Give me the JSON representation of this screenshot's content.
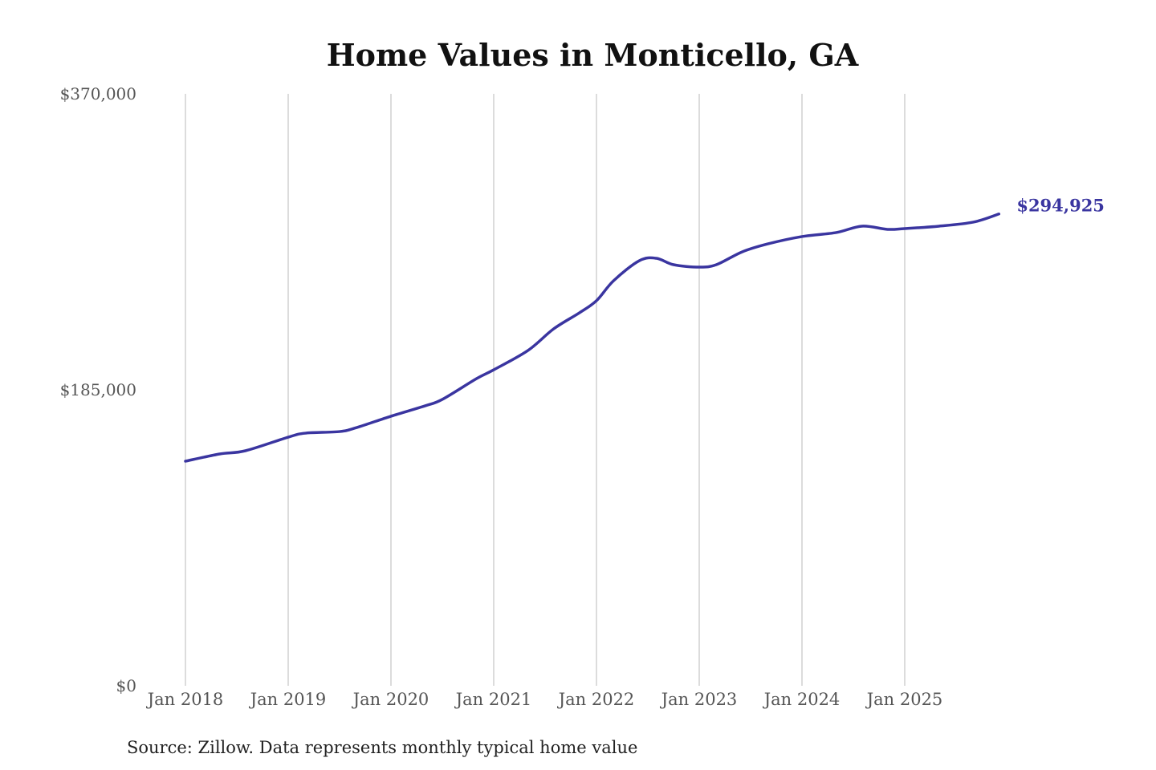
{
  "chart_data": {
    "type": "line",
    "title": "Home Values in Monticello, GA",
    "xlabel": "",
    "ylabel": "",
    "ylim": [
      0,
      370000
    ],
    "y_ticks": [
      "$0",
      "$185,000",
      "$370,000"
    ],
    "y_tick_values": [
      0,
      185000,
      370000
    ],
    "x_ticks": [
      "Jan 2018",
      "Jan 2019",
      "Jan 2020",
      "Jan 2021",
      "Jan 2022",
      "Jan 2023",
      "Jan 2024",
      "Jan 2025"
    ],
    "x_tick_dates": [
      "2018-01",
      "2019-01",
      "2020-01",
      "2021-01",
      "2022-01",
      "2023-01",
      "2024-01",
      "2025-01"
    ],
    "xlim": [
      "2018-01",
      "2025-12"
    ],
    "grid": "vertical",
    "legend": "none",
    "line_color": "#3a35a0",
    "end_label": "$294,925",
    "source": "Source: Zillow. Data represents monthly typical home value",
    "series": [
      {
        "x": [
          "2018-01",
          "2018-05",
          "2018-08",
          "2019-01",
          "2019-03",
          "2019-07",
          "2019-09",
          "2020-01",
          "2020-05",
          "2020-07",
          "2020-11",
          "2021-01",
          "2021-05",
          "2021-08",
          "2021-11",
          "2022-01",
          "2022-03",
          "2022-06",
          "2022-08",
          "2022-10",
          "2023-01",
          "2023-03",
          "2023-06",
          "2023-09",
          "2024-01",
          "2024-05",
          "2024-08",
          "2024-11",
          "2025-01",
          "2025-05",
          "2025-09",
          "2025-12"
        ],
        "values": [
          140400,
          144900,
          146900,
          155400,
          157900,
          158900,
          161400,
          168500,
          175000,
          179000,
          192000,
          197500,
          209600,
          223100,
          233100,
          240700,
          253200,
          265700,
          267200,
          263200,
          261700,
          263200,
          271200,
          276200,
          280800,
          283300,
          287300,
          285300,
          285800,
          287300,
          289800,
          294925
        ]
      }
    ]
  }
}
